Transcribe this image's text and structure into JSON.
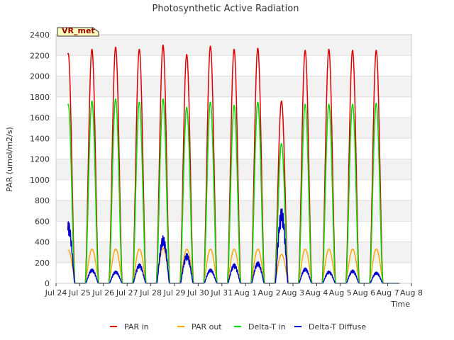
{
  "chart_data": {
    "type": "line",
    "title": "Photosynthetic Active Radiation",
    "xlabel": "Time",
    "ylabel": "PAR (umol/m2/s)",
    "site_label": "VR_met",
    "x_ticks": [
      "Jul 24",
      "Jul 25",
      "Jul 26",
      "Jul 27",
      "Jul 28",
      "Jul 29",
      "Jul 30",
      "Jul 31",
      "Aug 1",
      "Aug 2",
      "Aug 3",
      "Aug 4",
      "Aug 5",
      "Aug 6",
      "Aug 7",
      "Aug 8"
    ],
    "xlim": [
      0,
      15
    ],
    "y_ticks": [
      0,
      200,
      400,
      600,
      800,
      1000,
      1200,
      1400,
      1600,
      1800,
      2000,
      2200,
      2400
    ],
    "ylim": [
      0,
      2400
    ],
    "x_unit": "days since Jul 24 00:00",
    "series": [
      {
        "name": "PAR in",
        "color": "#dd0000",
        "daily_peaks": [
          2220,
          2260,
          2280,
          2260,
          2300,
          2210,
          2290,
          2260,
          2270,
          1760,
          2250,
          2260,
          2250,
          2250
        ]
      },
      {
        "name": "PAR out",
        "color": "#ffa500",
        "daily_peaks": [
          320,
          330,
          330,
          330,
          340,
          330,
          330,
          330,
          330,
          280,
          330,
          330,
          330,
          330
        ]
      },
      {
        "name": "Delta-T in",
        "color": "#00dd00",
        "daily_peaks": [
          1730,
          1760,
          1780,
          1750,
          1780,
          1700,
          1750,
          1720,
          1750,
          1350,
          1730,
          1730,
          1730,
          1740
        ]
      },
      {
        "name": "Delta-T Diffuse",
        "color": "#0000cc",
        "daily_peaks": [
          600,
          140,
          120,
          190,
          460,
          290,
          140,
          190,
          210,
          730,
          150,
          120,
          130,
          110
        ]
      }
    ]
  }
}
